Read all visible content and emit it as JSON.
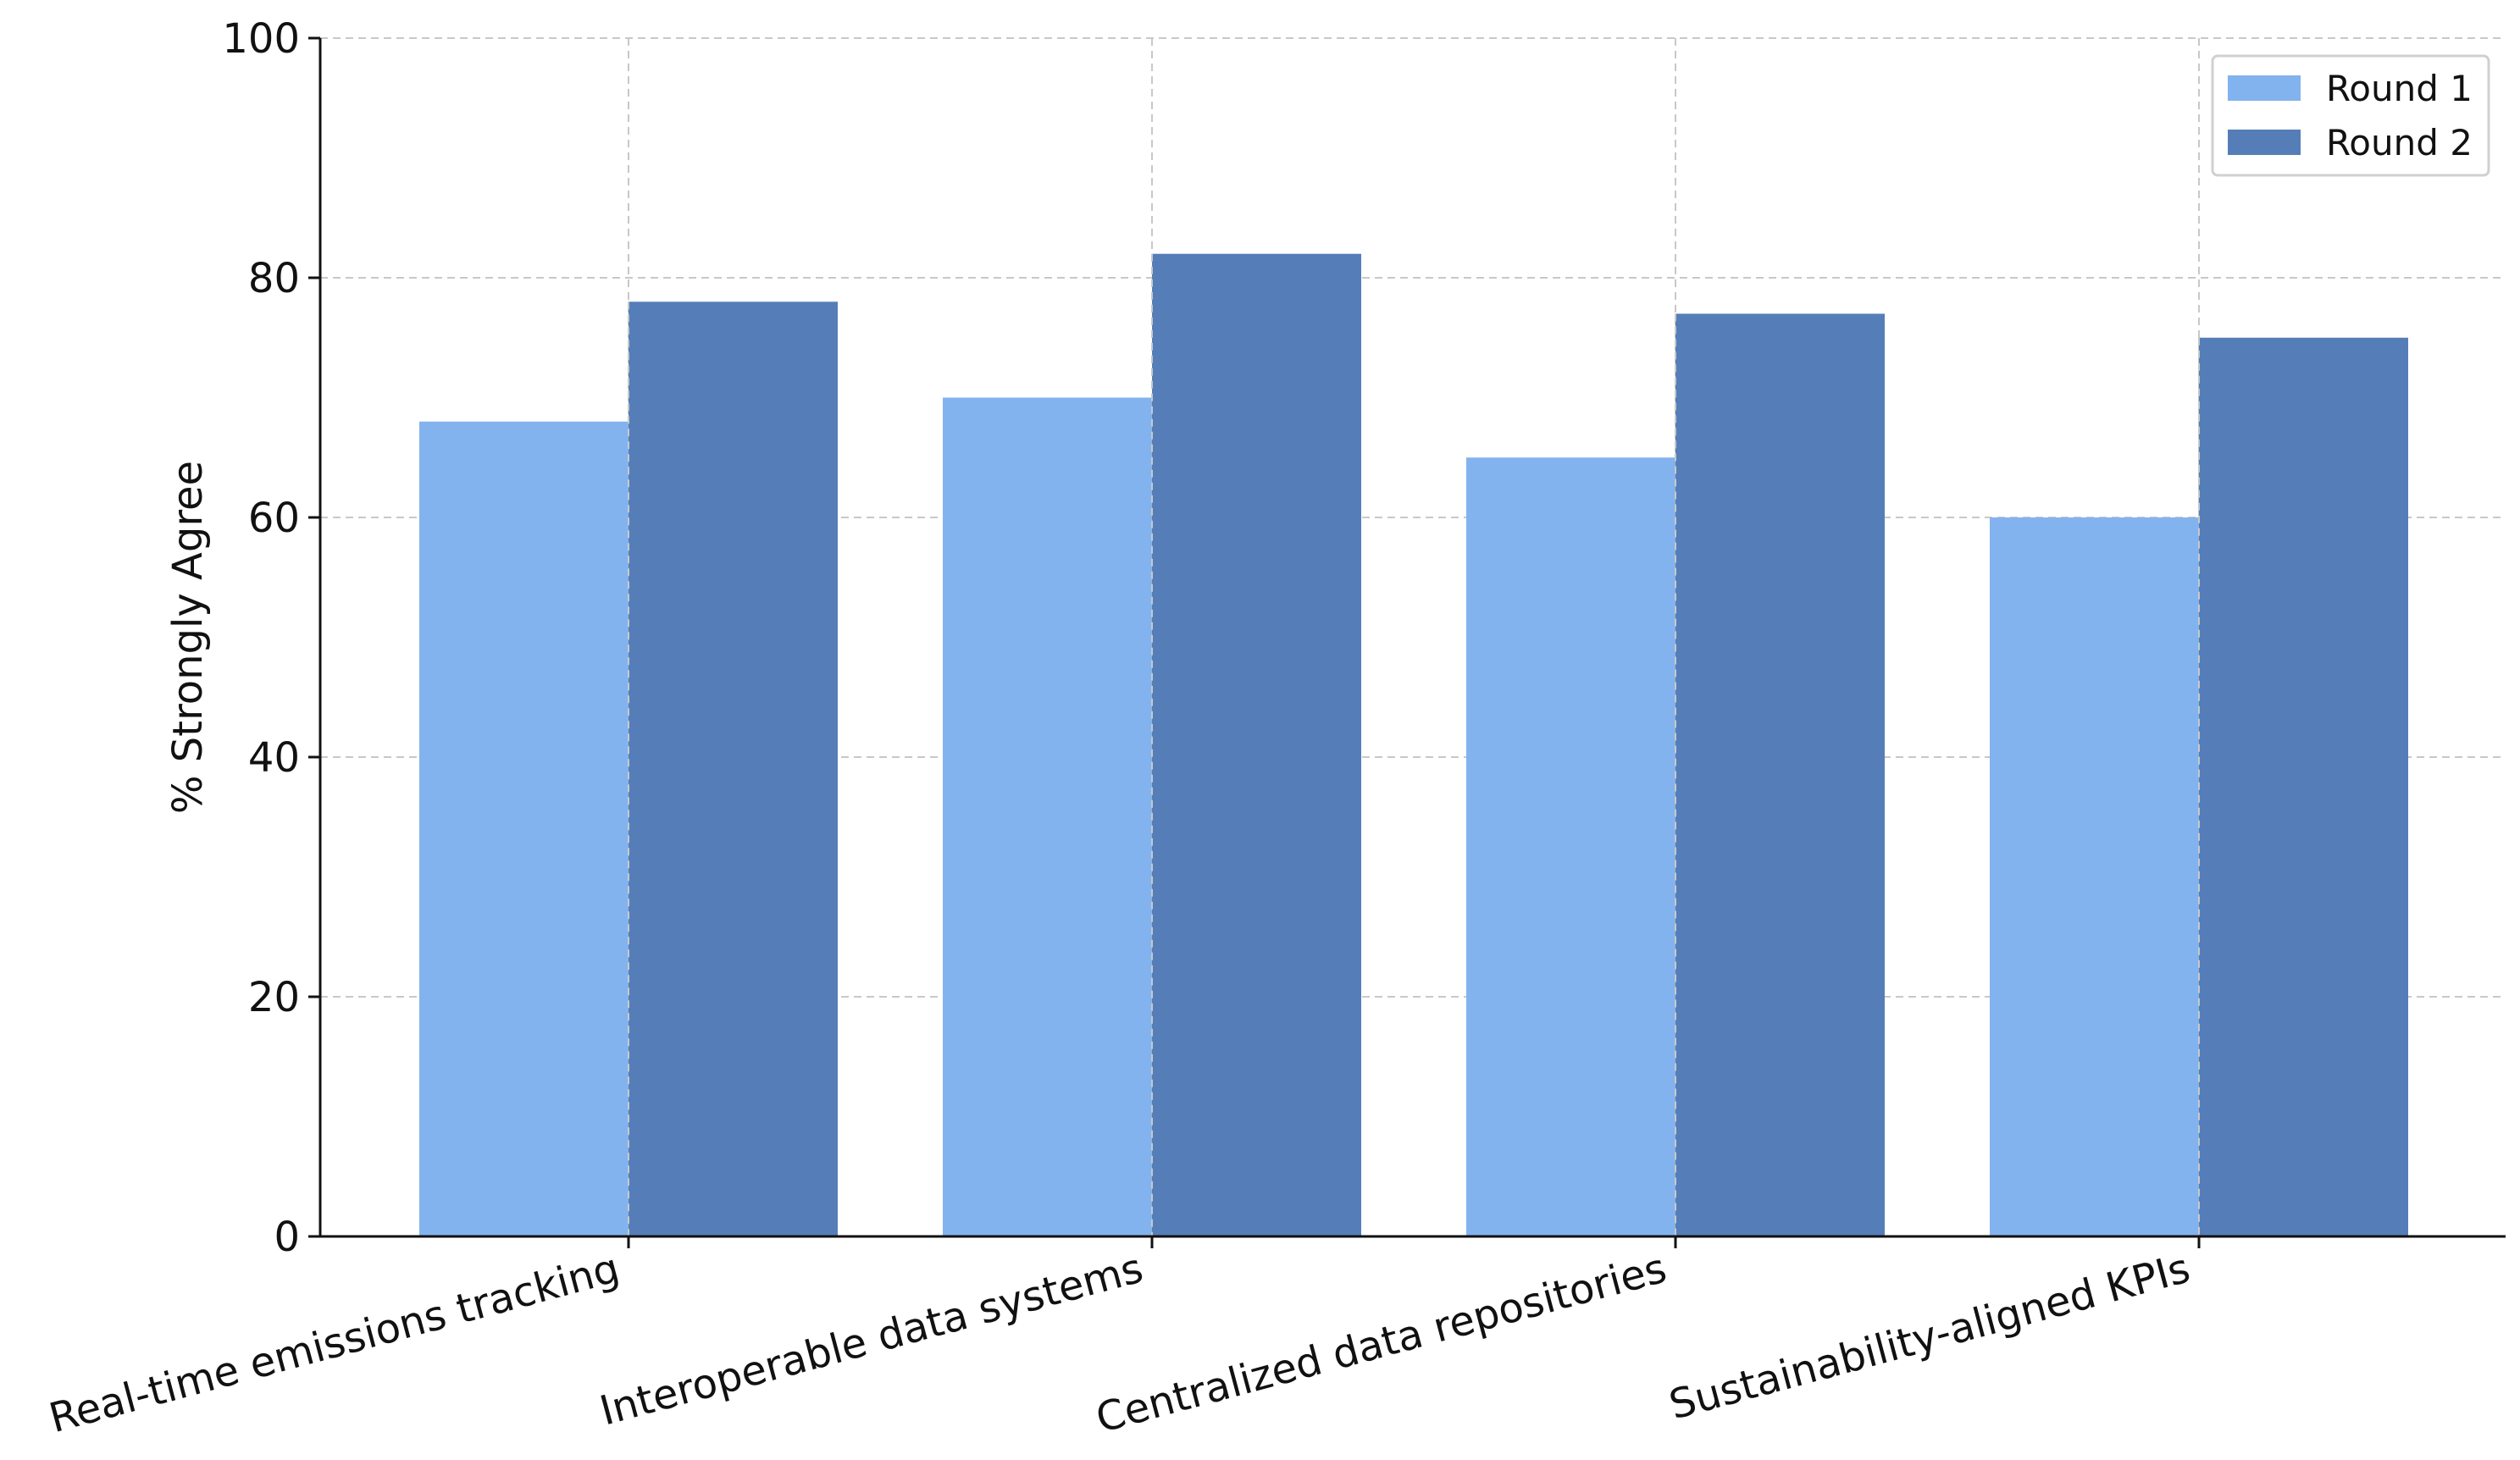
{
  "chart_data": {
    "type": "bar",
    "title": "",
    "xlabel": "",
    "ylabel": "% Strongly Agree",
    "ylim": [
      0,
      100
    ],
    "yticks": [
      0,
      20,
      40,
      60,
      80,
      100
    ],
    "categories": [
      "Real-time emissions tracking",
      "Interoperable data systems",
      "Centralized data repositories",
      "Sustainability-aligned KPIs"
    ],
    "series": [
      {
        "name": "Round 1",
        "color": "#83b3ee",
        "values": [
          68,
          70,
          65,
          60
        ]
      },
      {
        "name": "Round 2",
        "color": "#557eb8",
        "values": [
          78,
          82,
          77,
          75
        ]
      }
    ],
    "grid": true,
    "legend_position": "top-right",
    "category_label_rotation_deg": -15
  }
}
